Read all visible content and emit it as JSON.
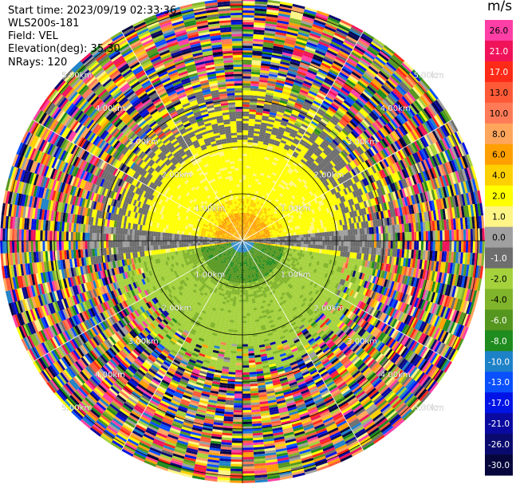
{
  "header": {
    "start_time": "Start time: 2023/09/19 02:33:36",
    "station": "WLS200s-181",
    "field": "Field: VEL",
    "elevation": "Elevation(deg): 35.30",
    "nrays": "NRays: 120"
  },
  "colorbar": {
    "unit": "m/s",
    "levels": [
      {
        "label": "26.0",
        "color": "#ff3fa5"
      },
      {
        "label": "21.0",
        "color": "#f0135a"
      },
      {
        "label": "17.0",
        "color": "#ff2a17"
      },
      {
        "label": "13.0",
        "color": "#ff5a37"
      },
      {
        "label": "10.0",
        "color": "#ff7a57"
      },
      {
        "label": "8.0",
        "color": "#ffa65d"
      },
      {
        "label": "6.0",
        "color": "#ffa000"
      },
      {
        "label": "4.0",
        "color": "#ffd000"
      },
      {
        "label": "2.0",
        "color": "#ffff00"
      },
      {
        "label": "1.0",
        "color": "#fff587"
      },
      {
        "label": "0.0",
        "color": "#a0a0a0"
      },
      {
        "label": "-1.0",
        "color": "#6e6e6e"
      },
      {
        "label": "-2.0",
        "color": "#a5d23c"
      },
      {
        "label": "-4.0",
        "color": "#80b42a"
      },
      {
        "label": "-6.0",
        "color": "#55961e"
      },
      {
        "label": "-8.0",
        "color": "#1e8c1e"
      },
      {
        "label": "-10.0",
        "color": "#1e82c8"
      },
      {
        "label": "-13.0",
        "color": "#0a50ff"
      },
      {
        "label": "-17.0",
        "color": "#0014e6"
      },
      {
        "label": "-21.0",
        "color": "#0a0aa0"
      },
      {
        "label": "-26.0",
        "color": "#0a0a6e"
      },
      {
        "label": "-30.0",
        "color": "#06063c"
      }
    ]
  },
  "chart_data": {
    "type": "heatmap",
    "projection": "polar-ppi",
    "title": "Start time: 2023/09/19 02:33:36",
    "field": "VEL",
    "units": "m/s",
    "elevation_deg": 35.3,
    "n_rays": 120,
    "range_rings_km": [
      1.0,
      2.0,
      3.0,
      4.0,
      5.0
    ],
    "ring_labels": [
      "1.00km",
      "2.00km",
      "3.00km",
      "4.00km",
      "5.00km"
    ],
    "ring_label_azimuths_deg": [
      -60,
      -30,
      30,
      60
    ],
    "spoke_azimuths_deg": [
      0,
      30,
      60,
      90,
      120,
      150,
      180,
      210,
      240,
      270,
      300,
      330
    ],
    "max_range_km": 5.15,
    "approx_pattern": [
      {
        "region": "north, within ~0.6 km",
        "value": 5.0
      },
      {
        "region": "north, 0.6–2.1 km",
        "value": 1.5
      },
      {
        "region": "south, within ~0.9 km",
        "value": -5.0
      },
      {
        "region": "south, 0.9–2.8 km",
        "value": -2.5
      },
      {
        "region": "beyond ~2.8–3.3 km",
        "value": "noise (all classes)"
      }
    ],
    "vmin": -30.0,
    "vmax": 30.0
  }
}
